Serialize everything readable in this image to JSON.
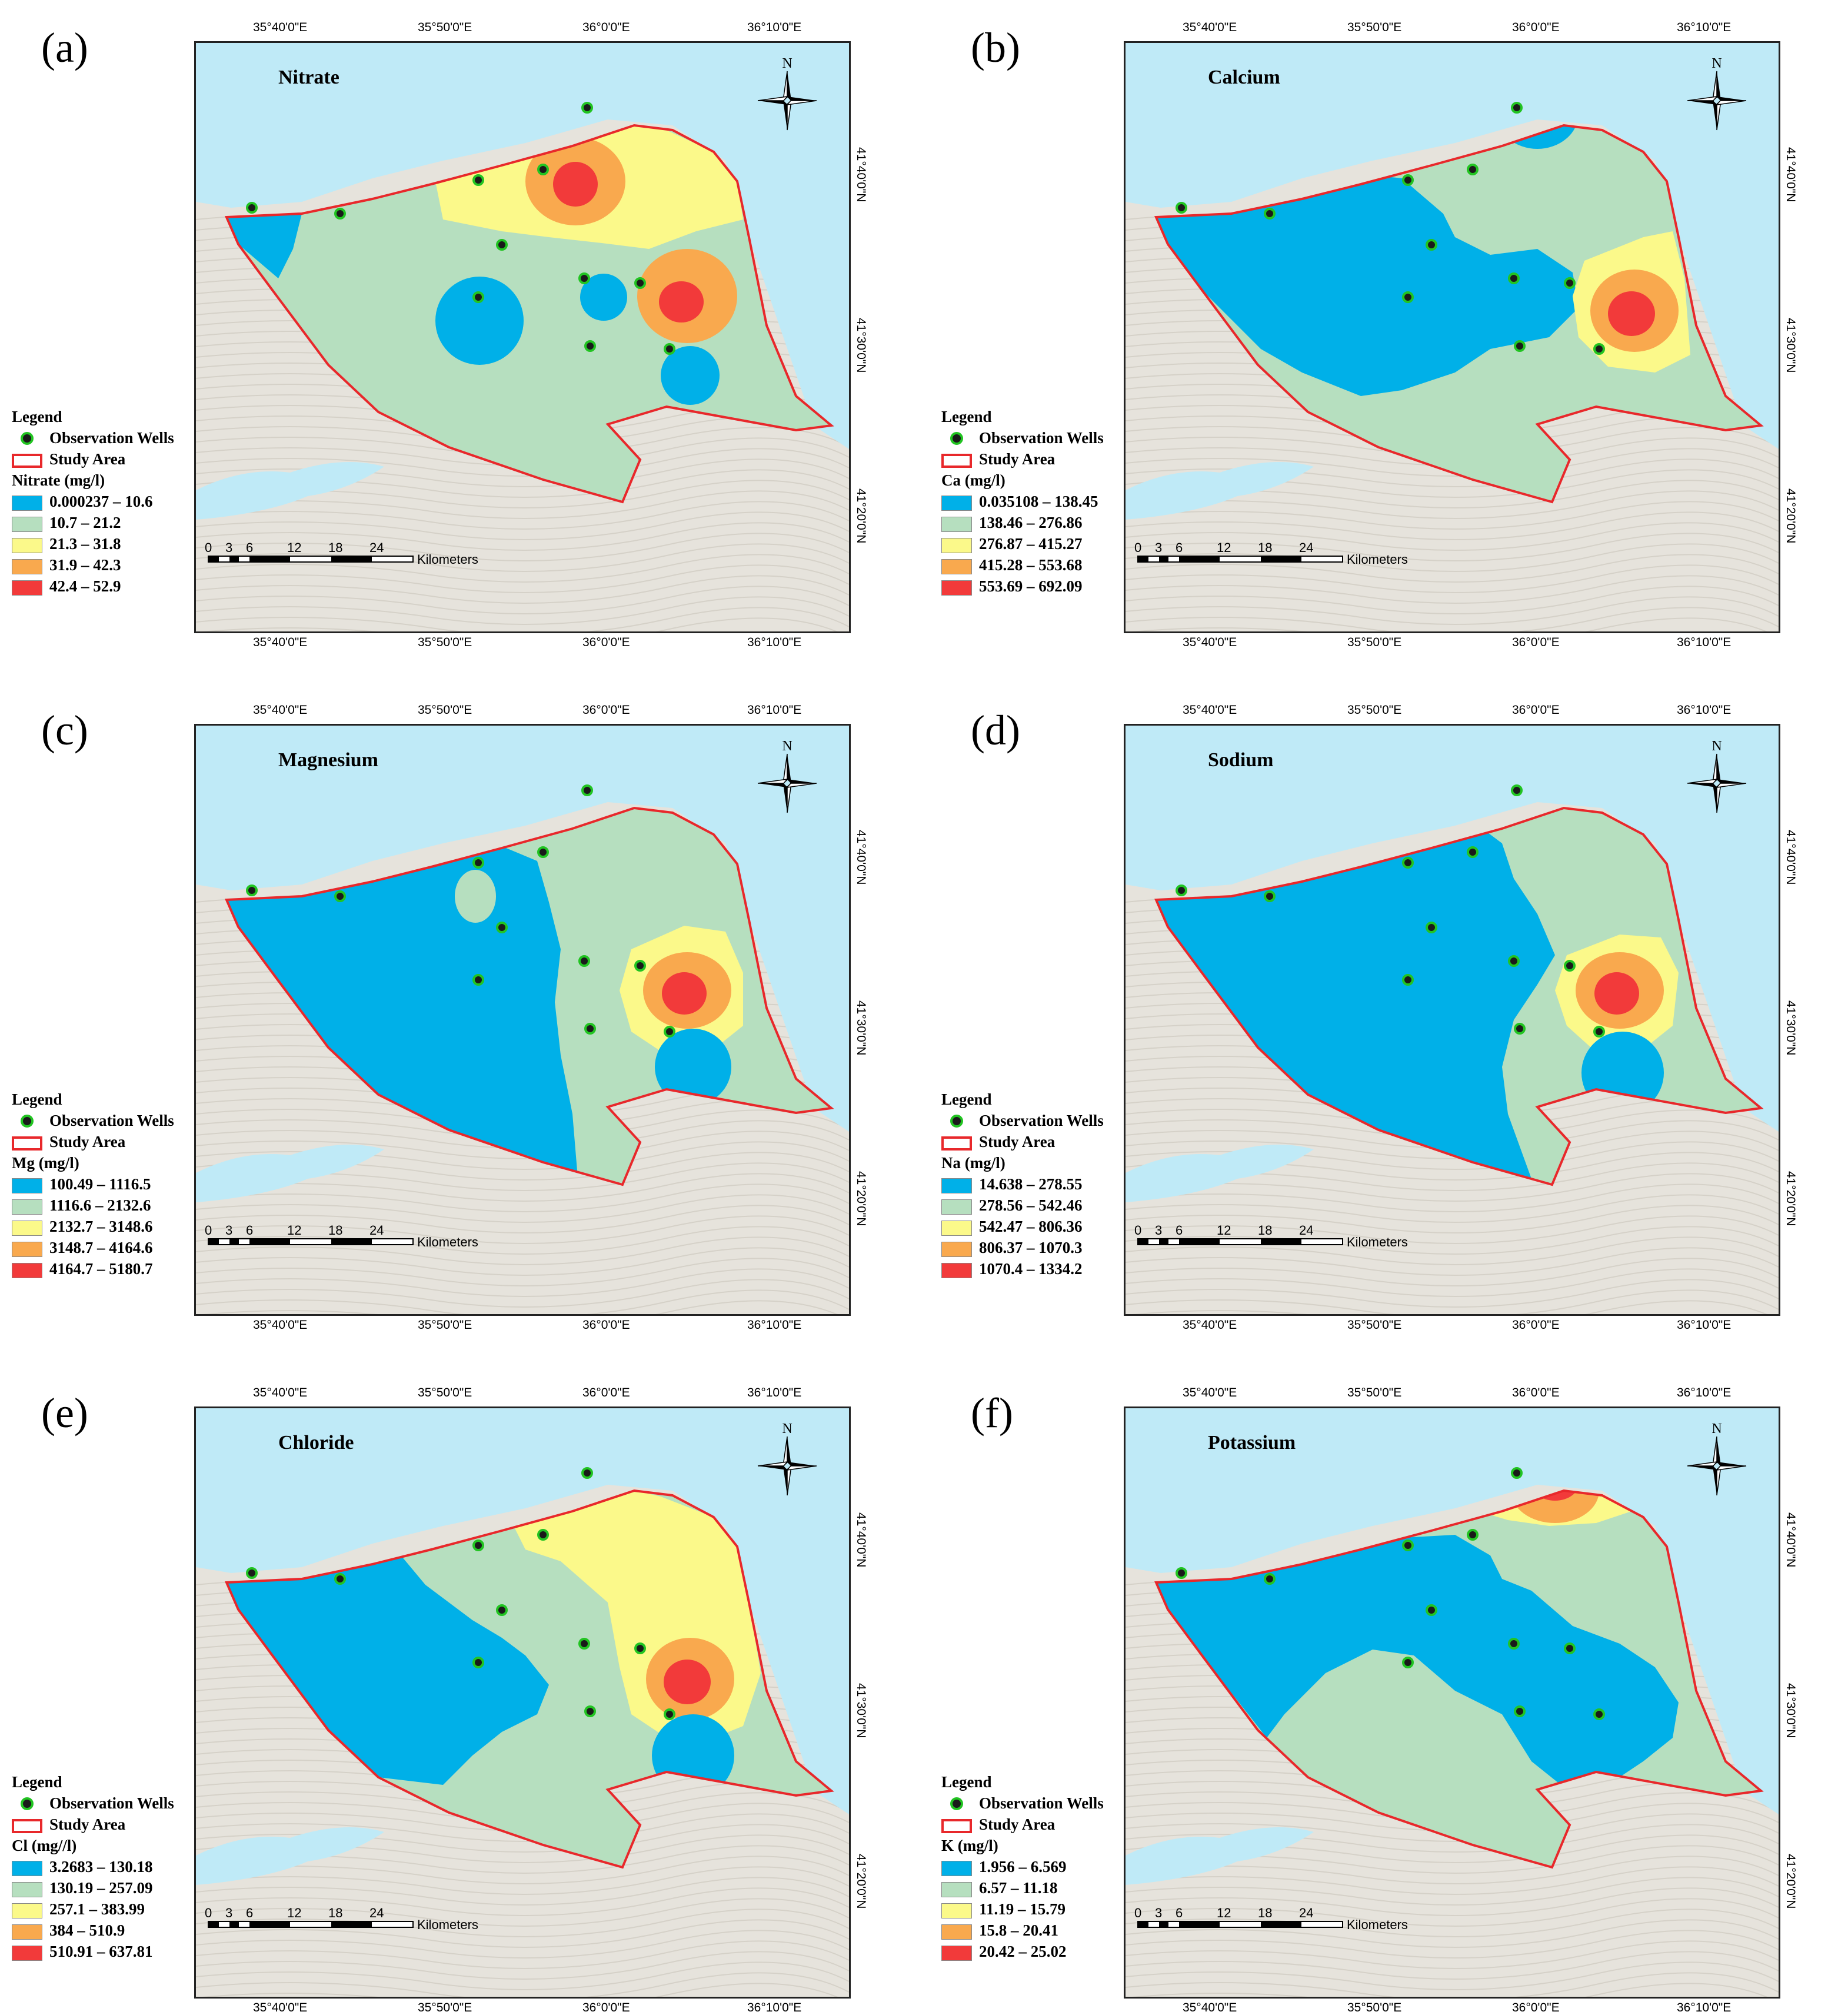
{
  "panels": [
    {
      "label": "(a)",
      "title": "Nitrate",
      "legend_title": "Nitrate (mg/l)",
      "classes": [
        "0.000237 – 10.6",
        "10.7 – 21.2",
        "21.3 – 31.8",
        "31.9 – 42.3",
        "42.4 – 52.9"
      ]
    },
    {
      "label": "(b)",
      "title": "Calcium",
      "legend_title": "Ca (mg/l)",
      "classes": [
        "0.035108 – 138.45",
        "138.46 – 276.86",
        "276.87 – 415.27",
        "415.28 – 553.68",
        "553.69 – 692.09"
      ]
    },
    {
      "label": "(c)",
      "title": "Magnesium",
      "legend_title": "Mg (mg/l)",
      "classes": [
        "100.49 – 1116.5",
        "1116.6 – 2132.6",
        "2132.7 – 3148.6",
        "3148.7 – 4164.6",
        "4164.7 – 5180.7"
      ]
    },
    {
      "label": "(d)",
      "title": "Sodium",
      "legend_title": "Na (mg/l)",
      "classes": [
        "14.638 – 278.55",
        "278.56 – 542.46",
        "542.47 – 806.36",
        "806.37 – 1070.3",
        "1070.4 – 1334.2"
      ]
    },
    {
      "label": "(e)",
      "title": "Chloride",
      "legend_title": "Cl (mg//l)",
      "classes": [
        "3.2683 – 130.18",
        "130.19 – 257.09",
        "257.1 – 383.99",
        "384 – 510.9",
        "510.91 – 637.81"
      ]
    },
    {
      "label": "(f)",
      "title": "Potassium",
      "legend_title": "K (mg/l)",
      "classes": [
        "1.956 – 6.569",
        "6.57 – 11.18",
        "11.19 – 15.79",
        "15.8 – 20.41",
        "20.42 – 25.02"
      ]
    }
  ],
  "legend": {
    "heading": "Legend",
    "wells": "Observation Wells",
    "study_area": "Study Area"
  },
  "class_colors": [
    "#00b0e8",
    "#b6dfbf",
    "#fbf98a",
    "#f9a94e",
    "#f23a3a"
  ],
  "water_color": "#bfeaf7",
  "boundary_color": "#e8282b",
  "longitudes": [
    "35°40'0\"E",
    "35°50'0\"E",
    "36°0'0\"E",
    "36°10'0\"E"
  ],
  "latitudes": [
    "41°40'0\"N",
    "41°30'0\"N",
    "41°20'0\"N"
  ],
  "scale": {
    "ticks": [
      "0",
      "3",
      "6",
      "12",
      "18",
      "24"
    ],
    "unit": "Kilometers"
  },
  "compass": {
    "label": "N"
  }
}
